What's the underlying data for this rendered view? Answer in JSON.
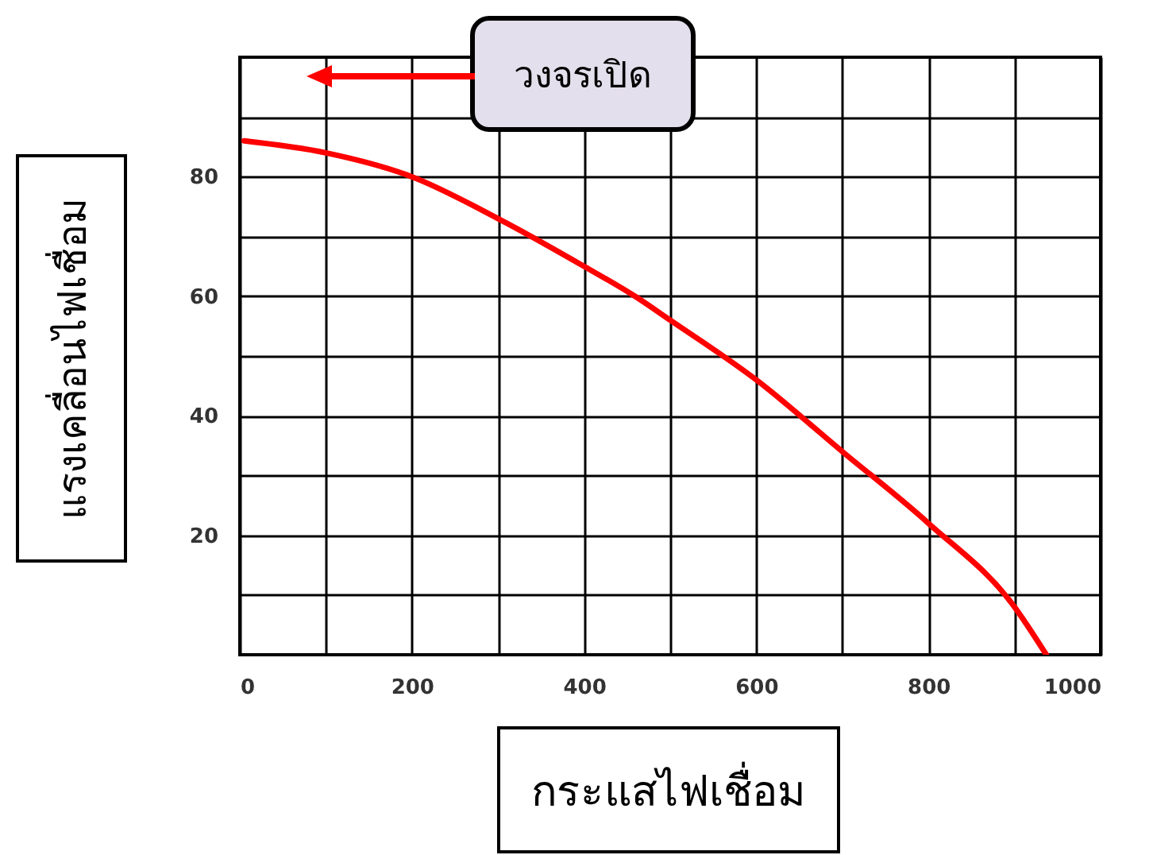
{
  "chart_data": {
    "type": "line",
    "xlabel": "กระแสไฟเชื่อม",
    "ylabel": "แรงเคลื่อนไฟเชื่อม",
    "annotations": [
      "วงจรเปิด"
    ],
    "series": [
      {
        "color": "#ff0000",
        "x": [
          5,
          100,
          200,
          300,
          400,
          459,
          500,
          600,
          700,
          800,
          900,
          937
        ],
        "values": [
          86,
          84,
          80,
          73,
          65,
          60,
          56,
          46,
          34,
          22,
          8,
          0
        ]
      }
    ],
    "xlim": [
      0,
      1000
    ],
    "xticks": [
      0,
      {
        "value": 100,
        "label": null
      },
      200,
      {
        "value": 300,
        "label": null
      },
      400,
      {
        "value": 500,
        "label": null
      },
      600,
      {
        "value": 700,
        "label": null
      },
      800,
      {
        "value": 900,
        "label": null
      },
      1000
    ],
    "ylim": [
      0,
      100
    ],
    "yticks": [
      {
        "value": 10,
        "label": null
      },
      20,
      {
        "value": 30,
        "label": null
      },
      40,
      {
        "value": 50,
        "label": null
      },
      60,
      {
        "value": 70,
        "label": null
      },
      80,
      {
        "value": 90,
        "label": null
      }
    ],
    "grid": true
  }
}
